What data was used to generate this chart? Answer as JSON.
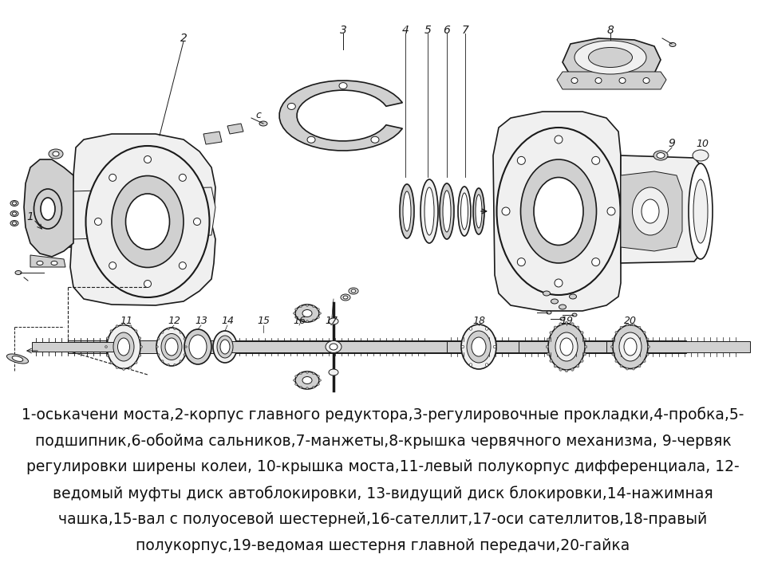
{
  "background_color": "#ffffff",
  "line_color": "#1a1a1a",
  "fill_light": "#f0f0f0",
  "fill_medium": "#d0d0d0",
  "fill_dark": "#a8a8a8",
  "description_lines": [
    "1-оськачени моста,2-корпус главного редуктора,3-регулировочные прокладки,4-пробка,5-",
    "подшипник,6-обойма сальников,7-манжеты,8-крышка червячного механизма, 9-червяк",
    "регулировки ширены колеи, 10-крышка моста,11-левый полукорпус дифференциала, 12-",
    "ведомый муфты диск автоблокировки, 13-видущий диск блокировки,14-нажимная",
    "чашка,15-вал с полуосевой шестерней,16-сателлит,17-оси сателлитов,18-правый",
    "полукорпус,19-ведомая шестерня главной передачи,20-гайка"
  ],
  "text_fontsize": 13.5,
  "text_color": "#111111",
  "fig_width": 9.6,
  "fig_height": 7.2,
  "dpi": 100
}
